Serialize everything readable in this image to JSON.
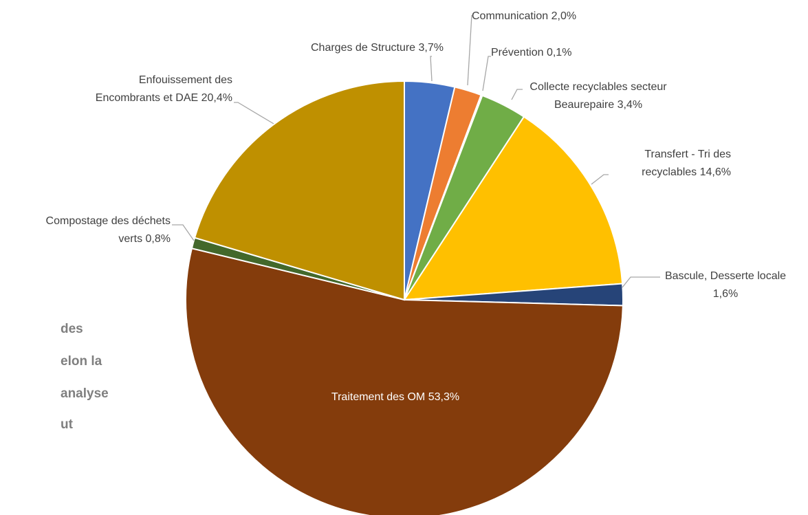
{
  "chart_data": {
    "type": "pie",
    "categories": [
      "Charges de Structure",
      "Communication",
      "Prévention",
      "Collecte recyclables secteur Beaurepaire",
      "Transfert - Tri des recyclables",
      "Bascule, Desserte locale",
      "Traitement des OM",
      "Compostage des déchets verts",
      "Enfouissement des Encombrants et DAE"
    ],
    "values": [
      3.7,
      2.0,
      0.1,
      3.4,
      14.6,
      1.6,
      53.3,
      0.8,
      20.4
    ],
    "value_labels": [
      "3,7%",
      "2,0%",
      "0,1%",
      "3,4%",
      "14,6%",
      "1,6%",
      "53,3%",
      "0,8%",
      "20,4%"
    ],
    "colors": [
      "#4472c4",
      "#ed7d31",
      "#a5a5a5",
      "#70ad47",
      "#ffc000",
      "#264478",
      "#843c0c",
      "#43682b",
      "#bf9000"
    ]
  },
  "side_text": [
    "des",
    "elon la",
    "analyse",
    "ut"
  ]
}
